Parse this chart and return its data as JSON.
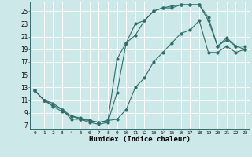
{
  "xlabel": "Humidex (Indice chaleur)",
  "bg_color": "#cde8e8",
  "grid_color": "#ffffff",
  "line_color": "#2e6e6a",
  "xlim": [
    -0.5,
    23.5
  ],
  "ylim": [
    6.5,
    26.5
  ],
  "yticks": [
    7,
    9,
    11,
    13,
    15,
    17,
    19,
    21,
    23,
    25
  ],
  "xticks": [
    0,
    1,
    2,
    3,
    4,
    5,
    6,
    7,
    8,
    9,
    10,
    11,
    12,
    13,
    14,
    15,
    16,
    17,
    18,
    19,
    20,
    21,
    22,
    23
  ],
  "line1_x": [
    0,
    1,
    2,
    3,
    4,
    5,
    6,
    7,
    8,
    9,
    10,
    11,
    12,
    13,
    14,
    15,
    16,
    17,
    18,
    19,
    20,
    21,
    22,
    23
  ],
  "line1_y": [
    12.5,
    11.0,
    10.5,
    9.5,
    8.0,
    8.0,
    7.5,
    7.2,
    7.5,
    12.2,
    20.0,
    23.0,
    23.5,
    25.0,
    25.5,
    25.5,
    26.0,
    26.0,
    26.0,
    24.0,
    19.5,
    20.8,
    19.5,
    19.5
  ],
  "line2_x": [
    0,
    1,
    2,
    3,
    4,
    5,
    6,
    7,
    8,
    9,
    10,
    11,
    12,
    13,
    14,
    15,
    16,
    17,
    18,
    19,
    20,
    21,
    22,
    23
  ],
  "line2_y": [
    12.5,
    11.0,
    10.2,
    9.5,
    8.5,
    8.2,
    7.8,
    7.5,
    7.8,
    17.5,
    20.0,
    21.2,
    23.5,
    25.0,
    25.5,
    25.8,
    26.0,
    26.0,
    26.0,
    23.5,
    19.5,
    20.5,
    19.5,
    19.0
  ],
  "line3_x": [
    0,
    1,
    2,
    3,
    4,
    5,
    6,
    7,
    8,
    9,
    10,
    11,
    12,
    13,
    14,
    15,
    16,
    17,
    18,
    19,
    20,
    21,
    22,
    23
  ],
  "line3_y": [
    12.5,
    11.0,
    10.0,
    9.2,
    8.5,
    8.0,
    7.8,
    7.5,
    7.8,
    8.0,
    9.5,
    13.0,
    14.5,
    17.0,
    18.5,
    20.0,
    21.5,
    22.0,
    23.5,
    18.5,
    18.5,
    19.5,
    18.5,
    19.0
  ]
}
